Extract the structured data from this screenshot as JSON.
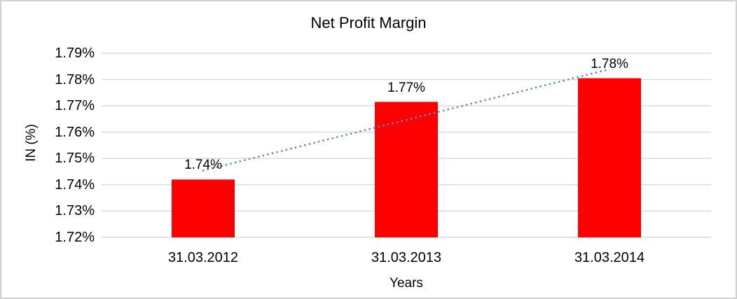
{
  "chart_data": {
    "type": "bar",
    "title": "Net Profit Margin",
    "xlabel": "Years",
    "ylabel": "IN (%)",
    "categories": [
      "31.03.2012",
      "31.03.2013",
      "31.03.2014"
    ],
    "values": [
      1.742,
      1.7715,
      1.7805
    ],
    "bar_value_labels": [
      "1.74%",
      "1.77%",
      "1.78%"
    ],
    "ylim": [
      1.72,
      1.79
    ],
    "ytick_step": 0.01,
    "ytick_labels": [
      "1.72%",
      "1.73%",
      "1.74%",
      "1.75%",
      "1.76%",
      "1.77%",
      "1.78%",
      "1.79%"
    ],
    "grid": "horizontal",
    "legend": "none",
    "trendline": {
      "type": "linear",
      "style": "dotted"
    },
    "colors": {
      "bar": "#FF0000",
      "trendline": "#5B8AC6",
      "gridline": "#D9D9D9",
      "text": "#000000",
      "frame_border": "#D1D1D1",
      "background": "#FFFFFF"
    }
  }
}
